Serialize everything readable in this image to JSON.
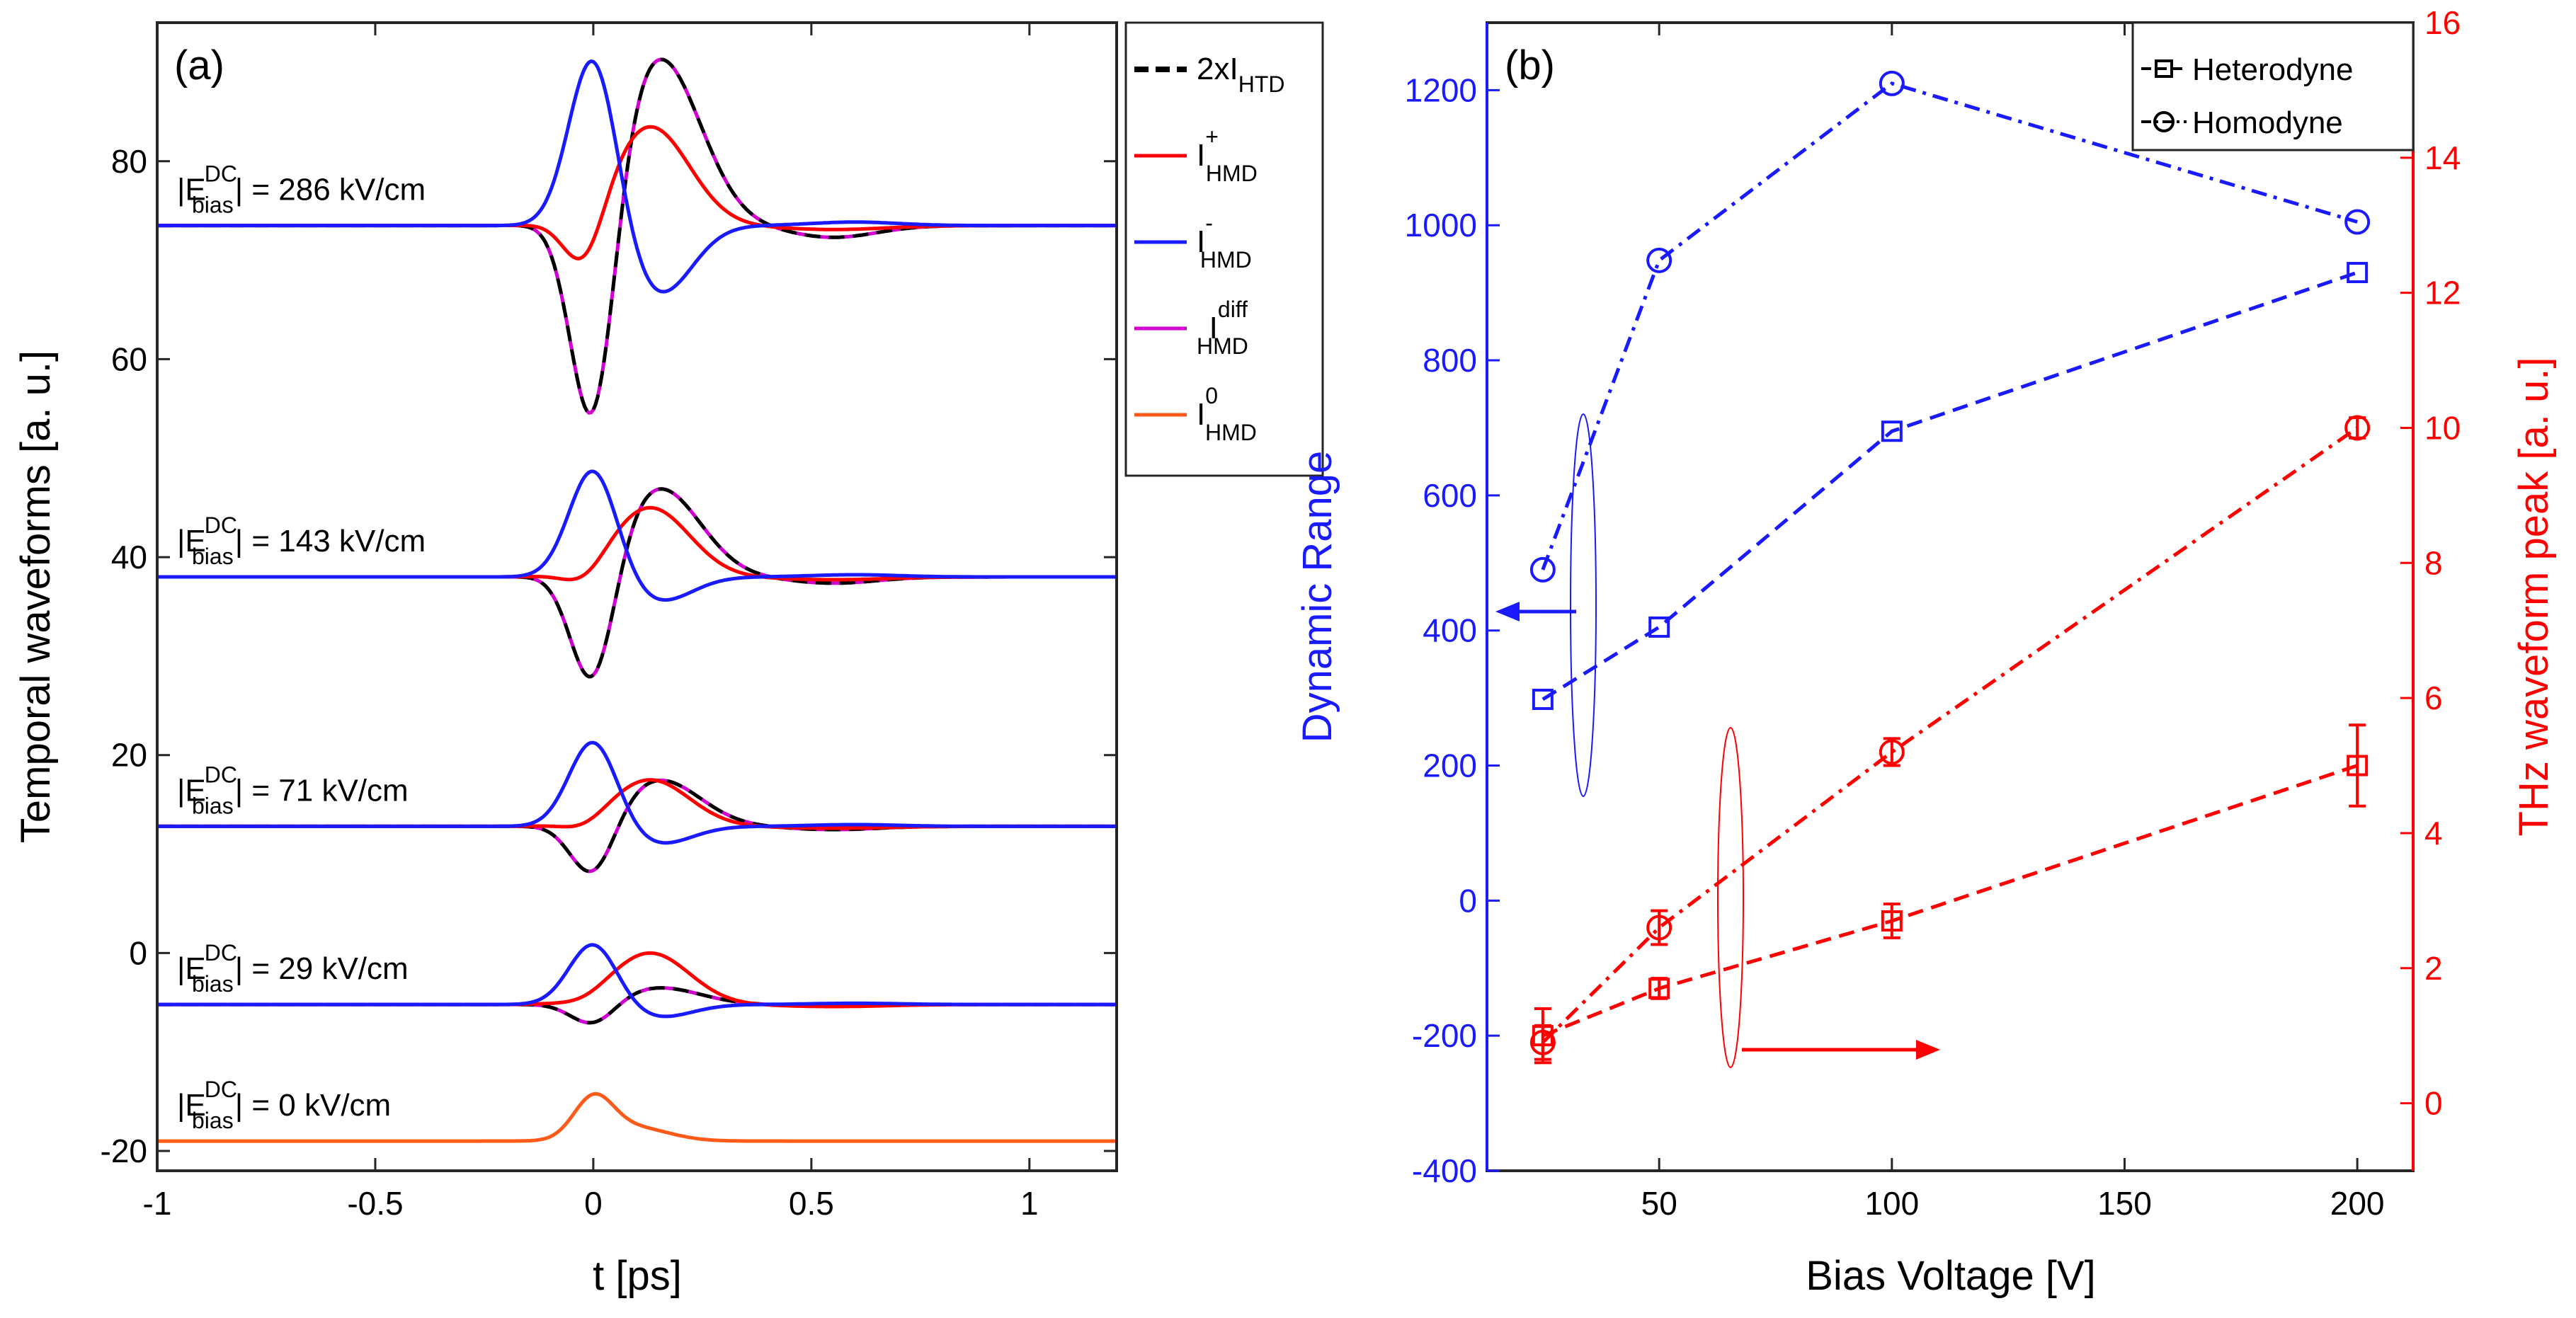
{
  "chart_data": [
    {
      "panel_label": "(a)",
      "type": "line",
      "xlabel": "t [ps]",
      "ylabel": "Temporal waveforms [a. u.]",
      "xlim": [
        -1,
        1.2
      ],
      "ylim": [
        -22,
        94
      ],
      "xticks": [
        "-1",
        "-0.5",
        "0",
        "0.5",
        "1"
      ],
      "yticks": [
        "-20",
        "0",
        "20",
        "40",
        "60",
        "80"
      ],
      "legend": [
        {
          "id": "htd",
          "label": "2xI",
          "sub": "HTD",
          "sup": "",
          "color": "#000000",
          "dash": "dashed"
        },
        {
          "id": "plus",
          "label": "I",
          "sub": "HMD",
          "sup": "+",
          "color": "#ff0000",
          "dash": "solid"
        },
        {
          "id": "minus",
          "label": "I",
          "sub": "HMD",
          "sup": "-",
          "color": "#1a1aff",
          "dash": "solid"
        },
        {
          "id": "diff",
          "label": "I",
          "sub": "HMD",
          "sup": "diff",
          "color": "#d000d0",
          "dash": "solid"
        },
        {
          "id": "zero",
          "label": "I",
          "sub": "HMD",
          "sup": "0",
          "color": "#ff5a1a",
          "dash": "solid"
        }
      ],
      "traces": [
        {
          "field_label": "|E",
          "field_sub": "bias",
          "field_sup": "DC",
          "field_value": "| = 286 kV/cm",
          "baseline": 73.5,
          "minus_peak": 91,
          "plus_dip": 68,
          "plus_peak": 83.5,
          "diff_dip": 50,
          "diff_peak": 90.5,
          "minus_dip": 66.5
        },
        {
          "field_label": "|E",
          "field_sub": "bias",
          "field_sup": "DC",
          "field_value": "| = 143 kV/cm",
          "baseline": 38,
          "minus_peak": 49,
          "plus_dip": 36.5,
          "plus_peak": 45,
          "diff_dip": 25.5,
          "diff_peak": 47,
          "minus_dip": 35.5
        },
        {
          "field_label": "|E",
          "field_sub": "bias",
          "field_sup": "DC",
          "field_value": "| = 71 kV/cm",
          "baseline": 12.8,
          "minus_peak": 21.5,
          "plus_dip": 12,
          "plus_peak": 17.5,
          "diff_dip": 7,
          "diff_peak": 17.5,
          "minus_dip": 11
        },
        {
          "field_label": "|E",
          "field_sub": "bias",
          "field_sup": "DC",
          "field_value": "| = 29 kV/cm",
          "baseline": -5.2,
          "minus_peak": 1,
          "plus_dip": -5.6,
          "plus_peak": 0,
          "diff_dip": -7.5,
          "diff_peak": -3.5,
          "minus_dip": -6.5
        },
        {
          "field_label": "|E",
          "field_sub": "bias",
          "field_sup": "DC",
          "field_value": "| = 0 kV/cm",
          "baseline": -19,
          "zero_peak": -15
        }
      ]
    },
    {
      "panel_label": "(b)",
      "type": "line",
      "xlabel": "Bias Voltage [V]",
      "ylabel_left": "Dynamic Range",
      "ylabel_right": "THz waveform peak [a. u.]",
      "xlim": [
        13,
        212
      ],
      "ylim_left": [
        -400,
        1300
      ],
      "ylim_right": [
        -1,
        16
      ],
      "xticks": [
        "50",
        "100",
        "150",
        "200"
      ],
      "yticks_left": [
        "-400",
        "-200",
        "0",
        "200",
        "400",
        "600",
        "800",
        "1000",
        "1200"
      ],
      "yticks_right": [
        "0",
        "2",
        "4",
        "6",
        "8",
        "10",
        "12",
        "14",
        "16"
      ],
      "legend": [
        {
          "label": "Heterodyne",
          "marker": "square"
        },
        {
          "label": "Homodyne",
          "marker": "circle"
        }
      ],
      "series": [
        {
          "name": "Homodyne dynamic range",
          "axis": "left",
          "color": "#1a1aff",
          "marker": "circle",
          "dash": "dashdot",
          "x": [
            25,
            50,
            100,
            200
          ],
          "y": [
            490,
            948,
            1210,
            1005
          ]
        },
        {
          "name": "Heterodyne dynamic range",
          "axis": "left",
          "color": "#1a1aff",
          "marker": "square",
          "dash": "dashed",
          "x": [
            25,
            50,
            100,
            200
          ],
          "y": [
            298,
            405,
            695,
            930
          ]
        },
        {
          "name": "Homodyne THz peak",
          "axis": "right",
          "color": "#ff0000",
          "marker": "circle",
          "dash": "dashdot",
          "x": [
            25,
            50,
            100,
            200
          ],
          "y": [
            0.9,
            2.6,
            5.2,
            10.0
          ],
          "err": [
            0.25,
            0.25,
            0.2,
            0.15
          ]
        },
        {
          "name": "Heterodyne THz peak",
          "axis": "right",
          "color": "#ff0000",
          "marker": "square",
          "dash": "dashed",
          "x": [
            25,
            50,
            100,
            200
          ],
          "y": [
            1.0,
            1.7,
            2.7,
            5.0
          ],
          "err": [
            0.4,
            0.15,
            0.25,
            0.6
          ]
        }
      ]
    }
  ]
}
